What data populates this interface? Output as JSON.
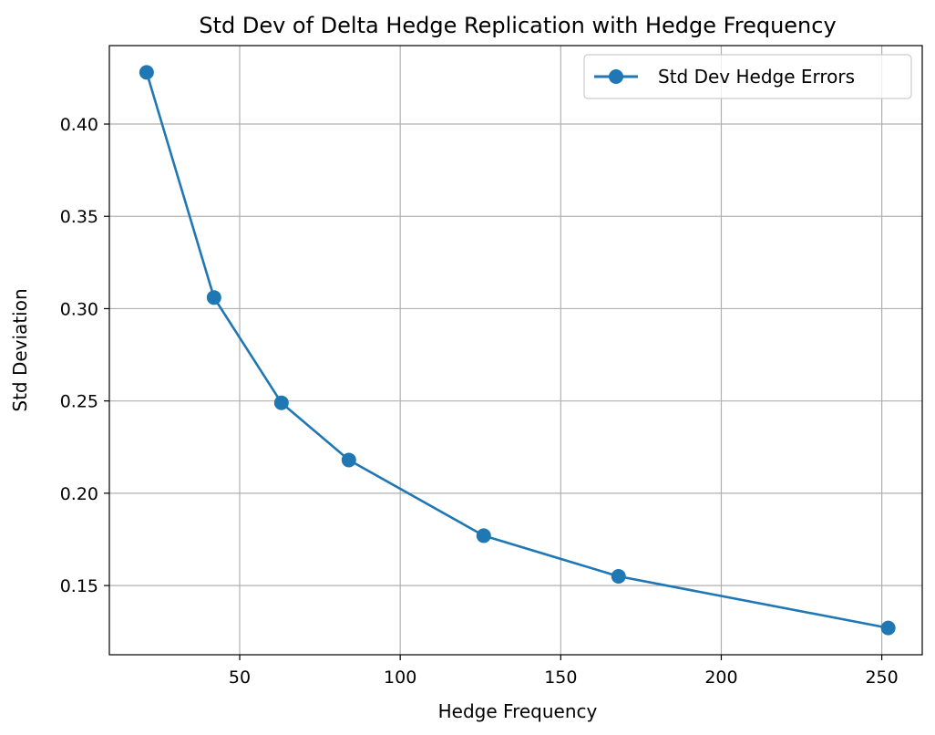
{
  "chart_data": {
    "type": "line",
    "title": "Std Dev of Delta Hedge Replication with Hedge Frequency",
    "xlabel": "Hedge Frequency",
    "ylabel": "Std Deviation",
    "xlim": [
      9.4,
      262.6
    ],
    "ylim": [
      0.1125,
      0.4425
    ],
    "xticks": [
      50,
      100,
      150,
      200,
      250
    ],
    "xtick_labels": [
      "50",
      "100",
      "150",
      "200",
      "250"
    ],
    "yticks": [
      0.15,
      0.2,
      0.25,
      0.3,
      0.35,
      0.4
    ],
    "ytick_labels": [
      "0.15",
      "0.20",
      "0.25",
      "0.30",
      "0.35",
      "0.40"
    ],
    "grid": true,
    "legend": {
      "position": "upper-right",
      "entries": [
        "Std Dev Hedge Errors"
      ]
    },
    "series": [
      {
        "name": "Std Dev Hedge Errors",
        "color": "#1f77b4",
        "marker": "circle",
        "x": [
          21,
          42,
          63,
          84,
          126,
          168,
          252
        ],
        "y": [
          0.428,
          0.306,
          0.249,
          0.218,
          0.177,
          0.155,
          0.127
        ]
      }
    ]
  }
}
